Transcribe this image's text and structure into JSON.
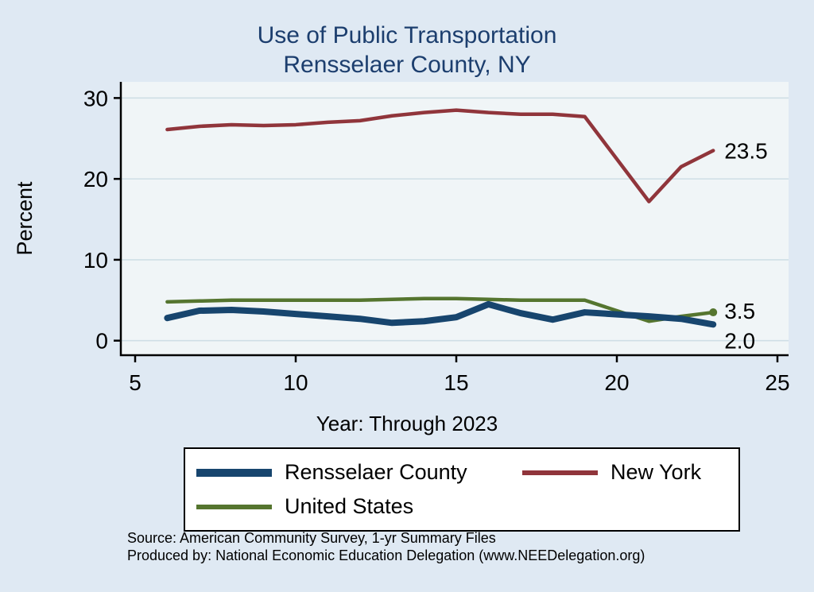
{
  "title": {
    "line1": "Use of Public Transportation",
    "line2": "Rensselaer County, NY"
  },
  "footer": {
    "source": "Source: American Community Survey, 1-yr Summary Files",
    "produced_by": "Produced by: National Economic Education Delegation (www.NEEDelegation.org)"
  },
  "chart_data": {
    "type": "line",
    "title": "Use of Public Transportation — Rensselaer County, NY",
    "xlabel": "Year: Through 2023",
    "ylabel": "Percent",
    "xlim": [
      5,
      25
    ],
    "ylim": [
      0,
      30
    ],
    "xticks": [
      5,
      10,
      15,
      20,
      25
    ],
    "yticks": [
      0,
      10,
      20,
      30
    ],
    "grid": true,
    "legend_position": "bottom",
    "plot_bg": "#f0f5f7",
    "grid_color": "#cfdfe6",
    "series": [
      {
        "name": "Rensselaer County",
        "color": "#17456e",
        "width": 8,
        "x": [
          6,
          7,
          8,
          9,
          10,
          11,
          12,
          13,
          14,
          15,
          16,
          17,
          18,
          19,
          21,
          22,
          23
        ],
        "y": [
          2.8,
          3.7,
          3.8,
          3.6,
          3.3,
          3.0,
          2.7,
          2.2,
          2.4,
          2.9,
          4.5,
          3.4,
          2.6,
          3.5,
          3.0,
          2.7,
          2.0
        ],
        "end_label": "2.0",
        "label_dy": 20,
        "end_dot": false
      },
      {
        "name": "New York",
        "color": "#90353b",
        "width": 4.5,
        "x": [
          6,
          7,
          8,
          9,
          10,
          11,
          12,
          13,
          14,
          15,
          16,
          17,
          18,
          19,
          21,
          22,
          23
        ],
        "y": [
          26.1,
          26.5,
          26.7,
          26.6,
          26.7,
          27.0,
          27.2,
          27.8,
          28.2,
          28.5,
          28.2,
          28.0,
          28.0,
          27.7,
          17.2,
          21.5,
          23.5
        ],
        "end_label": "23.5",
        "label_dy": 0,
        "end_dot": false
      },
      {
        "name": "United States",
        "color": "#55752f",
        "width": 4.5,
        "x": [
          6,
          7,
          8,
          9,
          10,
          11,
          12,
          13,
          14,
          15,
          16,
          17,
          18,
          19,
          21,
          22,
          23
        ],
        "y": [
          4.8,
          4.9,
          5.0,
          5.0,
          5.0,
          5.0,
          5.0,
          5.1,
          5.2,
          5.2,
          5.1,
          5.0,
          5.0,
          5.0,
          2.4,
          3.0,
          3.5
        ],
        "end_label": "3.5",
        "label_dy": -2,
        "end_dot": true
      }
    ]
  }
}
